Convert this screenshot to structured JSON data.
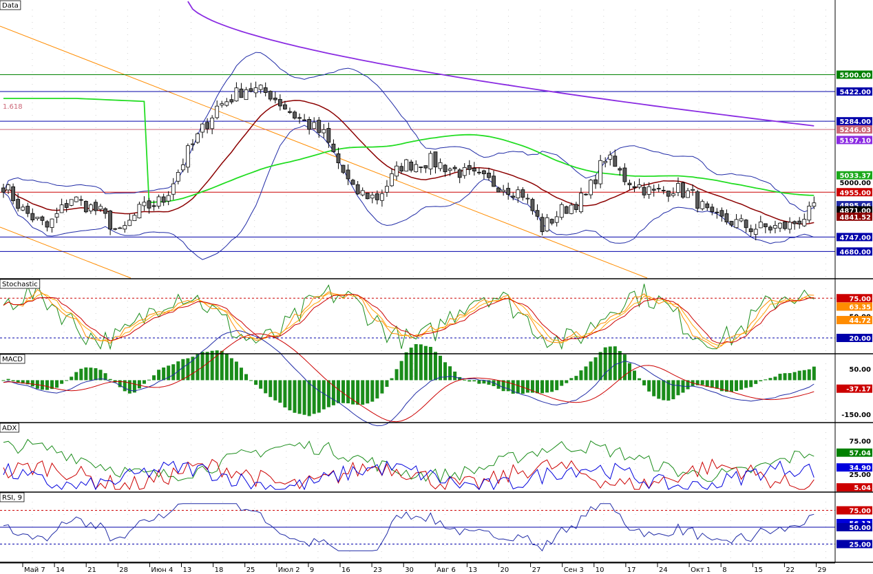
{
  "panels": [
    {
      "id": "price",
      "title": "Data"
    },
    {
      "id": "stoch",
      "title": "Stochastic"
    },
    {
      "id": "macd",
      "title": "MACD"
    },
    {
      "id": "adx",
      "title": "ADX"
    },
    {
      "id": "rsi",
      "title": "RSI, 9"
    }
  ],
  "colors": {
    "up_candle": "#ffffff",
    "down_candle": "#5a5a5a",
    "bollinger": "#1f2aa6",
    "ma_fast": "#8b0000",
    "ma_mid": "#22dd22",
    "ma_slow": "#8a2be2",
    "fib_lines": "#ff8c00",
    "level_blue": "#0000aa",
    "level_green": "#008000",
    "level_red": "#cc0000",
    "level_pink": "#cc6677"
  },
  "chart_data": [
    {
      "type": "candlestick",
      "panel": "price",
      "ylim": [
        4560,
        5840
      ],
      "fib_label": "1.618",
      "x_tick_labels": [
        "Май 7",
        "14",
        "21",
        "28",
        "Июн 4",
        "13",
        "18",
        "25",
        "Июл 2",
        "9",
        "16",
        "23",
        "30",
        "Авг 6",
        "13",
        "20",
        "27",
        "Сен 3",
        "10",
        "17",
        "24",
        "Окт 1",
        "8",
        "15",
        "22",
        "29"
      ],
      "levels": [
        {
          "value": 5500.0,
          "label": "5500.00",
          "color": "#008000"
        },
        {
          "value": 5422.0,
          "label": "5422.00",
          "color": "#0000aa"
        },
        {
          "value": 5284.0,
          "label": "5284.00",
          "color": "#0000aa"
        },
        {
          "value": 5246.03,
          "label": "5246.03",
          "color": "#cc6677"
        },
        {
          "value": 4955.0,
          "label": "4955.00",
          "color": "#cc0000"
        },
        {
          "value": 4747.0,
          "label": "4747.00",
          "color": "#0000aa"
        },
        {
          "value": 4680.0,
          "label": "4680.00",
          "color": "#0000aa"
        }
      ],
      "tick_labels": [
        {
          "value": 5000.0,
          "label": "5000.00"
        }
      ],
      "value_tags": [
        {
          "value": 5197.1,
          "label": "5197.10",
          "color": "#8a2be2"
        },
        {
          "value": 5033.37,
          "label": "5033.37",
          "color": "#1aa81a"
        },
        {
          "value": 4895.06,
          "label": "4895.06",
          "color": "#1f2aa6"
        },
        {
          "value": 4871.0,
          "label": "4871.00",
          "color": "#000000"
        },
        {
          "value": 4841.52,
          "label": "4841.52",
          "color": "#8b0000"
        }
      ]
    },
    {
      "type": "line",
      "panel": "stoch",
      "ylim": [
        0,
        100
      ],
      "levels": [
        {
          "value": 75,
          "label": "75.00",
          "color": "#cc0000"
        },
        {
          "value": 20,
          "label": "20.00",
          "color": "#0000aa"
        }
      ],
      "value_tags": [
        {
          "value": 75,
          "label": "75.00",
          "color": "#cc0000"
        },
        {
          "value": 63.35,
          "label": "63.35",
          "color": "#ff8c00"
        },
        {
          "value": 44.72,
          "label": "44.72",
          "color": "#ff8c00"
        },
        {
          "value": 20,
          "label": "20.00",
          "color": "#0000aa"
        }
      ],
      "tick_labels": [
        {
          "value": 50,
          "label": "50.00"
        }
      ]
    },
    {
      "type": "line",
      "panel": "macd",
      "ylim": [
        -180,
        110
      ],
      "tick_labels": [
        {
          "value": 50,
          "label": "50.00"
        },
        {
          "value": -150,
          "label": "-150.00"
        }
      ],
      "value_tags": [
        {
          "value": -37.17,
          "label": "-37.17",
          "color": "#cc0000"
        }
      ]
    },
    {
      "type": "line",
      "panel": "adx",
      "ylim": [
        0,
        100
      ],
      "tick_labels": [
        {
          "value": 75,
          "label": "75.00"
        },
        {
          "value": 25,
          "label": "25.00"
        }
      ],
      "value_tags": [
        {
          "value": 57.04,
          "label": "57.04",
          "color": "#008000"
        },
        {
          "value": 34.9,
          "label": "34.90",
          "color": "#0000dd"
        },
        {
          "value": 5.04,
          "label": "5.04",
          "color": "#cc0000"
        }
      ]
    },
    {
      "type": "line",
      "panel": "rsi",
      "ylim": [
        0,
        100
      ],
      "levels": [
        {
          "value": 75,
          "label": "75.00",
          "color": "#cc0000"
        },
        {
          "value": 50,
          "label": "50.00",
          "color": "#0000aa"
        },
        {
          "value": 25,
          "label": "25.00",
          "color": "#0000aa"
        }
      ],
      "value_tags": [
        {
          "value": 75,
          "label": "75.00",
          "color": "#cc0000"
        },
        {
          "value": 56.13,
          "label": "56.13",
          "color": "#0000dd"
        },
        {
          "value": 50,
          "label": "50.00",
          "color": "#0000aa"
        },
        {
          "value": 25,
          "label": "25.00",
          "color": "#0000aa"
        }
      ]
    }
  ]
}
